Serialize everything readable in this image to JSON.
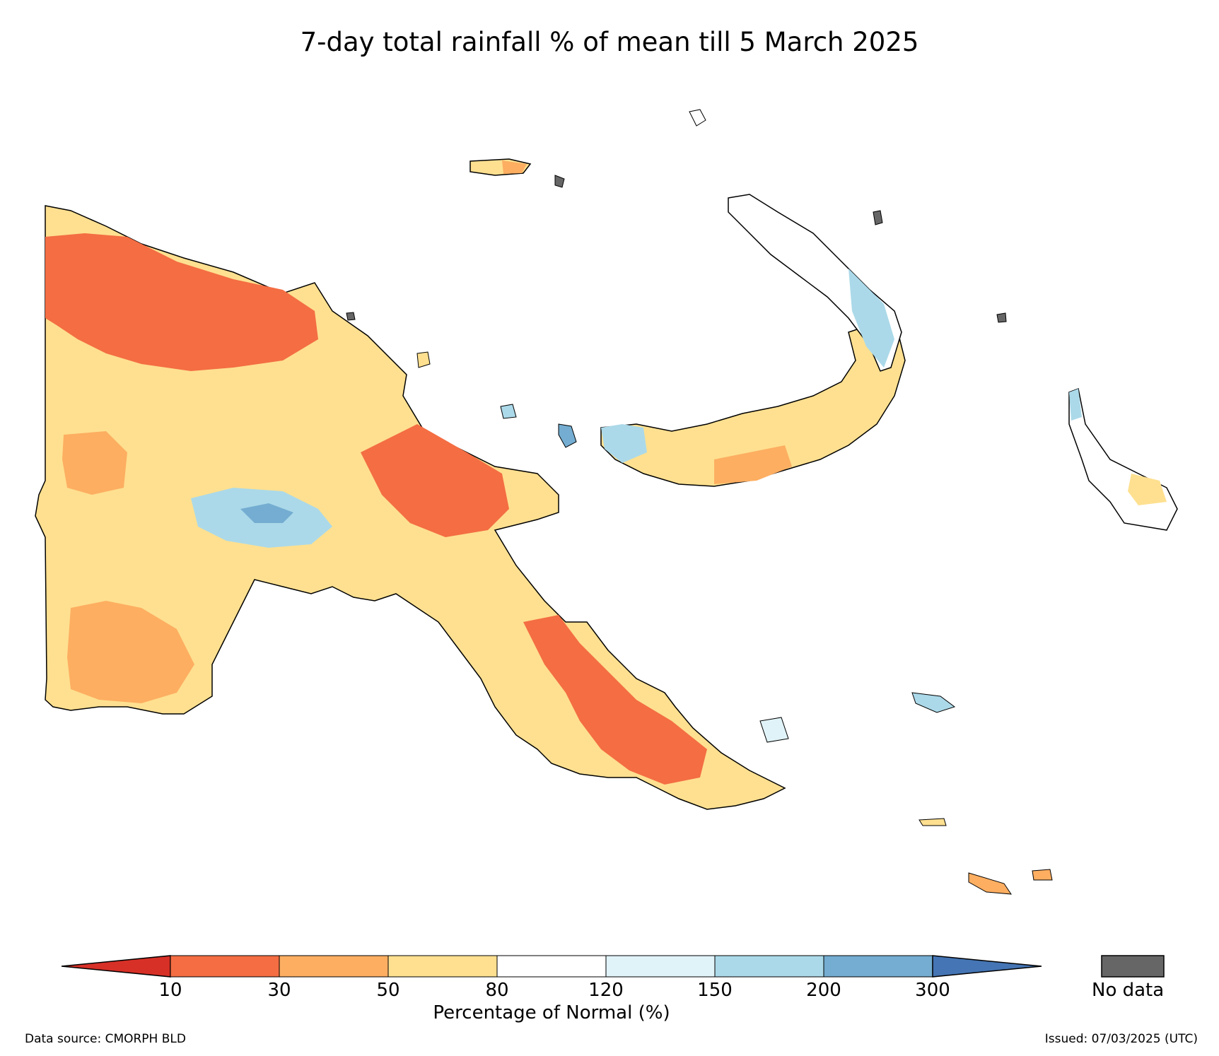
{
  "title": "7-day total rainfall % of mean till 5 March 2025",
  "legend": {
    "label": "Percentage of Normal (%)",
    "ticks": [
      "10",
      "30",
      "50",
      "80",
      "120",
      "150",
      "200",
      "300"
    ],
    "colors": {
      "lt10": "#d73027",
      "c10_30": "#f46d43",
      "c30_50": "#fdae61",
      "c50_80": "#fee090",
      "c80_120": "#ffffff",
      "c120_150": "#e0f3f8",
      "c150_200": "#abd9e9",
      "c200_300": "#74add1",
      "gt300": "#4575b4",
      "no_data": "#666666"
    },
    "no_data_label": "No data"
  },
  "footer": {
    "source": "Data source: CMORPH BLD",
    "issued": "Issued: 07/03/2025 (UTC)"
  }
}
